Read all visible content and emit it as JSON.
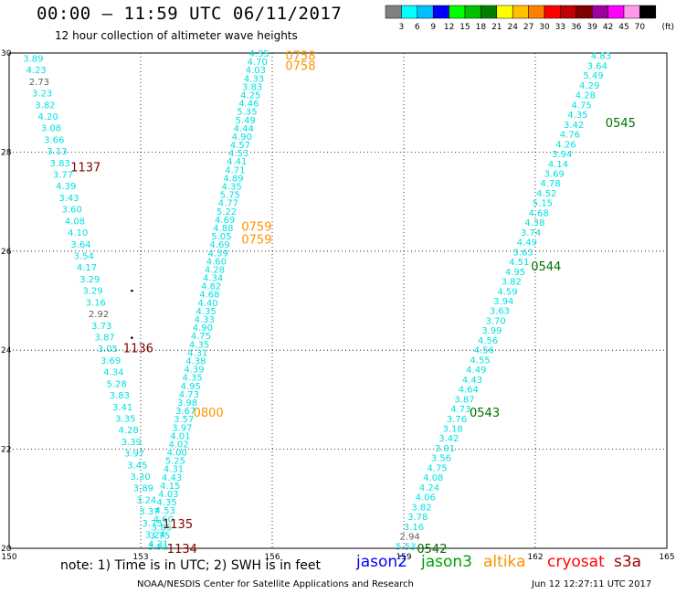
{
  "header": {
    "title": "00:00 – 11:59 UTC 06/11/2017",
    "subtitle": "12 hour collection of altimeter wave heights"
  },
  "colorbar": {
    "unit": "(ft)",
    "bins": [
      {
        "color": "#808080",
        "label": "3"
      },
      {
        "color": "#00ffff",
        "label": "6"
      },
      {
        "color": "#00bfff",
        "label": "9"
      },
      {
        "color": "#0000ff",
        "label": "12"
      },
      {
        "color": "#00ff00",
        "label": "15"
      },
      {
        "color": "#00c000",
        "label": "18"
      },
      {
        "color": "#008000",
        "label": "21"
      },
      {
        "color": "#ffff00",
        "label": "24"
      },
      {
        "color": "#ffc000",
        "label": "27"
      },
      {
        "color": "#ff8000",
        "label": "30"
      },
      {
        "color": "#ff0000",
        "label": "33"
      },
      {
        "color": "#c00000",
        "label": "36"
      },
      {
        "color": "#800000",
        "label": "39"
      },
      {
        "color": "#a000a0",
        "label": "42"
      },
      {
        "color": "#ff00ff",
        "label": "45"
      },
      {
        "color": "#ff99ee",
        "label": "70"
      },
      {
        "color": "#000000",
        "label": ""
      }
    ]
  },
  "map": {
    "lon_ticks": [
      "150",
      "153",
      "156",
      "159",
      "162",
      "165"
    ],
    "lat_ticks": [
      "20",
      "22",
      "24",
      "26",
      "28",
      "30"
    ],
    "tracks": [
      {
        "color": "#00e0e0",
        "lon_start": 150.55,
        "lat_start": 29.9,
        "lon_end": 153.4,
        "lat_end": 20.05,
        "values": [
          "3.89",
          "4.23",
          "2.73",
          "3.23",
          "3.82",
          "4.20",
          "3.08",
          "3.66",
          "3.13",
          "3.83",
          "3.77",
          "4.39",
          "3.43",
          "3.60",
          "4.08",
          "4.10",
          "3.64",
          "3.54",
          "4.17",
          "3.29",
          "3.29",
          "3.16",
          "2.92",
          "3.73",
          "3.87",
          "3.05",
          "3.69",
          "4.34",
          "5.28",
          "3.83",
          "3.41",
          "3.35",
          "4.28",
          "3.39",
          "3.97",
          "3.45",
          "3.30",
          "3.89",
          "3.24",
          "3.37",
          "3.75",
          "3.24",
          "3.91"
        ]
      },
      {
        "color": "#00e0e0",
        "lon_start": 155.7,
        "lat_start": 30.0,
        "lon_end": 153.4,
        "lat_end": 20.1,
        "values": [
          "4.35",
          "4.70",
          "4.03",
          "4.33",
          "3.83",
          "4.25",
          "4.46",
          "5.35",
          "5.49",
          "4.44",
          "4.90",
          "4.57",
          "4.53",
          "4.41",
          "4.71",
          "4.89",
          "4.35",
          "5.75",
          "4.77",
          "5.22",
          "4.69",
          "4.88",
          "5.05",
          "4.69",
          "4.59",
          "4.60",
          "4.28",
          "4.34",
          "4.82",
          "4.68",
          "4.40",
          "4.35",
          "4.33",
          "4.90",
          "4.75",
          "4.35",
          "4.31",
          "4.38",
          "4.39",
          "4.35",
          "4.95",
          "4.73",
          "3.98",
          "3.67",
          "3.57",
          "3.97",
          "4.01",
          "4.02",
          "4.00",
          "5.25",
          "4.31",
          "4.43",
          "4.15",
          "4.03",
          "4.35",
          "4.53",
          "4.60",
          "3.85",
          "3.75",
          "4.21"
        ]
      },
      {
        "color": "#00e0e0",
        "lon_start": 159.05,
        "lat_start": 20.05,
        "lon_end": 163.5,
        "lat_end": 29.95,
        "values": [
          "5.53",
          "2.94",
          "3.16",
          "3.78",
          "3.82",
          "4.06",
          "4.24",
          "4.08",
          "4.75",
          "3.56",
          "3.91",
          "3.42",
          "3.18",
          "3.76",
          "4.73",
          "3.87",
          "4.64",
          "4.43",
          "4.49",
          "4.55",
          "4.56",
          "4.56",
          "3.99",
          "3.70",
          "3.63",
          "3.94",
          "4.59",
          "3.82",
          "4.95",
          "4.51",
          "3.63",
          "4.49",
          "3.74",
          "4.38",
          "4.68",
          "5.15",
          "4.52",
          "4.78",
          "3.69",
          "4.14",
          "3.94",
          "4.26",
          "4.76",
          "3.42",
          "4.35",
          "4.75",
          "4.28",
          "4.29",
          "5.49",
          "3.64",
          "4.83"
        ]
      }
    ],
    "time_labels": [
      {
        "text": "1137",
        "lon": 151.4,
        "lat": 27.7,
        "color": "#800000"
      },
      {
        "text": "1136",
        "lon": 152.6,
        "lat": 24.05,
        "color": "#800000"
      },
      {
        "text": "1135",
        "lon": 153.5,
        "lat": 20.5,
        "color": "#800000"
      },
      {
        "text": "1134",
        "lon": 153.6,
        "lat": 20.0,
        "color": "#800000"
      },
      {
        "text": "0758",
        "lon": 156.3,
        "lat": 29.95,
        "color": "#ff9000"
      },
      {
        "text": "0758",
        "lon": 156.3,
        "lat": 29.75,
        "color": "#ff9000"
      },
      {
        "text": "0759",
        "lon": 155.3,
        "lat": 26.5,
        "color": "#ff9000"
      },
      {
        "text": "0759",
        "lon": 155.3,
        "lat": 26.25,
        "color": "#ff9000"
      },
      {
        "text": "0800",
        "lon": 154.2,
        "lat": 22.75,
        "color": "#ff9000"
      },
      {
        "text": "0545",
        "lon": 163.6,
        "lat": 28.6,
        "color": "#007000"
      },
      {
        "text": "0544",
        "lon": 161.9,
        "lat": 25.7,
        "color": "#007000"
      },
      {
        "text": "0543",
        "lon": 160.5,
        "lat": 22.75,
        "color": "#007000"
      },
      {
        "text": "0542",
        "lon": 159.3,
        "lat": 20.0,
        "color": "#007000"
      }
    ]
  },
  "footer": {
    "note": "note:  1) Time is in UTC;  2) SWH is in feet",
    "legend": [
      {
        "label": "jason2",
        "color": "#0000ff"
      },
      {
        "label": "jason3",
        "color": "#00a000"
      },
      {
        "label": "altika",
        "color": "#ff9000"
      },
      {
        "label": "cryosat",
        "color": "#ff0000"
      },
      {
        "label": "s3a",
        "color": "#a00000"
      }
    ],
    "credit_left": "NOAA/NESDIS Center for Satellite Applications and Research",
    "credit_right": "Jun 12 12:27:11 UTC 2017"
  }
}
